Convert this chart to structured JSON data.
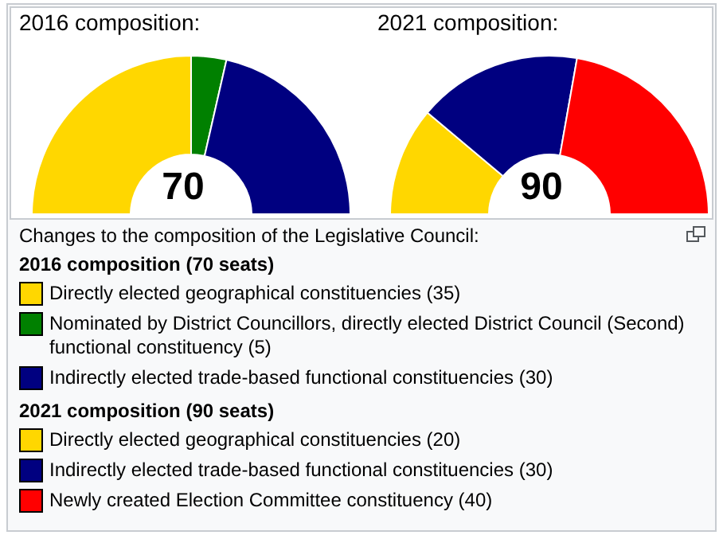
{
  "chart_data": [
    {
      "type": "donut",
      "title": "2016 composition:",
      "legend_title": "2016 composition (70 seats)",
      "legend": "bottom",
      "annotations": [
        "70",
        "Changes to the composition of the Legislative Council:"
      ],
      "categories": [
        "Directly elected geographical constituencies",
        "Nominated by District Councillors, directly elected District Council (Second) functional constituency",
        "Indirectly elected trade-based functional constituencies"
      ],
      "values": [
        35,
        5,
        30
      ],
      "value_labels": [
        "(35)",
        "(5)",
        "(30)"
      ],
      "colors": [
        "#ffd700",
        "#008000",
        "#000080"
      ]
    },
    {
      "type": "donut",
      "title": "2021 composition:",
      "legend_title": "2021 composition (90 seats)",
      "legend": "bottom",
      "annotations": [
        "90"
      ],
      "categories": [
        "Directly elected geographical constituencies",
        "Indirectly elected trade-based functional constituencies",
        "Newly created Election Committee constituency"
      ],
      "values": [
        20,
        30,
        40
      ],
      "value_labels": [
        "(20)",
        "(30)",
        "(40)"
      ],
      "colors": [
        "#ffd700",
        "#000080",
        "#ff0000"
      ]
    }
  ]
}
